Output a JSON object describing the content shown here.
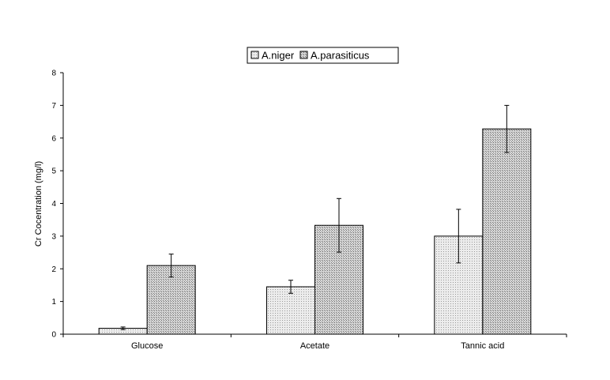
{
  "chart_data": {
    "type": "bar",
    "title": "",
    "xlabel": "",
    "ylabel": "Cr Cocentration (mg/l)",
    "ylim": [
      0,
      8
    ],
    "yticks": [
      "0",
      "1",
      "2",
      "3",
      "4",
      "5",
      "6",
      "7",
      "8"
    ],
    "grid": false,
    "legend_position": "top-center",
    "categories": [
      "Glucose",
      "Acetate",
      "Tannic acid"
    ],
    "series": [
      {
        "name": "A.niger",
        "values": [
          0.18,
          1.45,
          3.0
        ],
        "errors": [
          0.04,
          0.2,
          0.82
        ],
        "color": "#e6e6e6",
        "pattern": "fine-dots"
      },
      {
        "name": "A.parasiticus",
        "values": [
          2.1,
          3.33,
          6.28
        ],
        "errors": [
          0.35,
          0.82,
          0.72
        ],
        "color": "#c9c9c9",
        "pattern": "dense-dots"
      }
    ]
  }
}
